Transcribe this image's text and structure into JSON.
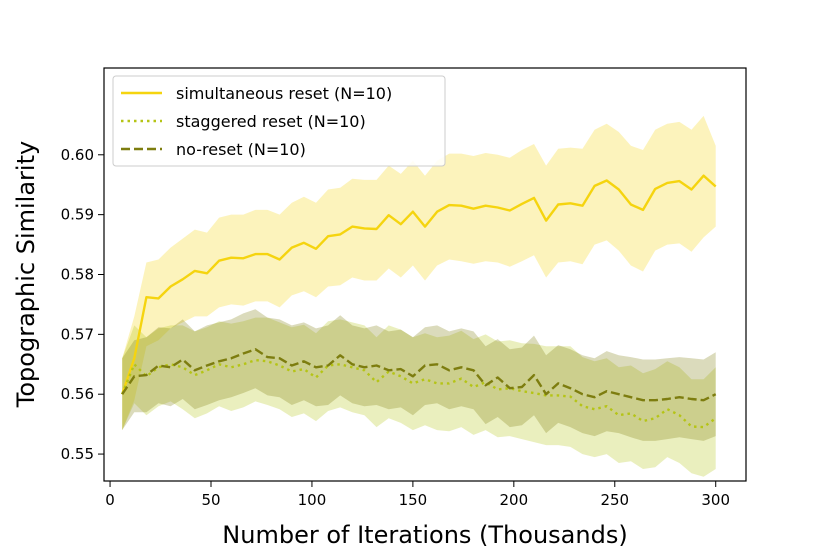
{
  "chart_data": {
    "type": "line",
    "title": "",
    "xlabel": "Number of Iterations (Thousands)",
    "ylabel": "Topographic Similarity",
    "xlim": [
      -3,
      315
    ],
    "ylim": [
      0.5455,
      0.6145
    ],
    "xticks": [
      0,
      50,
      100,
      150,
      200,
      250,
      300
    ],
    "yticks": [
      0.55,
      0.56,
      0.57,
      0.58,
      0.59,
      0.6
    ],
    "xtick_labels": [
      "0",
      "50",
      "100",
      "150",
      "200",
      "250",
      "300"
    ],
    "ytick_labels": [
      "0.55",
      "0.56",
      "0.57",
      "0.58",
      "0.59",
      "0.60"
    ],
    "grid": false,
    "legend_position": "top-left",
    "x": [
      6,
      12,
      18,
      24,
      30,
      36,
      42,
      48,
      54,
      60,
      66,
      72,
      78,
      84,
      90,
      96,
      102,
      108,
      114,
      120,
      126,
      132,
      138,
      144,
      150,
      156,
      162,
      168,
      174,
      180,
      186,
      192,
      198,
      204,
      210,
      216,
      222,
      228,
      234,
      240,
      246,
      252,
      258,
      264,
      270,
      276,
      282,
      288,
      294,
      300
    ],
    "series": [
      {
        "name": "simultaneous reset (N=10)",
        "color": "#f5d40f",
        "dash": "solid",
        "values": [
          0.56,
          0.566,
          0.5762,
          0.576,
          0.578,
          0.5792,
          0.5806,
          0.5802,
          0.5823,
          0.5828,
          0.5827,
          0.5834,
          0.5834,
          0.5825,
          0.5845,
          0.5853,
          0.5843,
          0.5864,
          0.5867,
          0.588,
          0.5877,
          0.5876,
          0.5899,
          0.5884,
          0.5905,
          0.588,
          0.5905,
          0.5916,
          0.5915,
          0.591,
          0.5915,
          0.5912,
          0.5907,
          0.5918,
          0.5928,
          0.589,
          0.5917,
          0.5919,
          0.5915,
          0.5948,
          0.5957,
          0.5942,
          0.5917,
          0.5908,
          0.5943,
          0.5953,
          0.5956,
          0.5942,
          0.5965,
          0.5947
        ],
        "lower": [
          0.554,
          0.559,
          0.568,
          0.569,
          0.571,
          0.572,
          0.573,
          0.573,
          0.5745,
          0.575,
          0.5748,
          0.5755,
          0.5755,
          0.5745,
          0.5765,
          0.5772,
          0.5762,
          0.578,
          0.5782,
          0.5795,
          0.579,
          0.579,
          0.581,
          0.5795,
          0.5815,
          0.579,
          0.5815,
          0.5825,
          0.5822,
          0.5818,
          0.5822,
          0.582,
          0.5813,
          0.5822,
          0.5832,
          0.5795,
          0.582,
          0.5822,
          0.5817,
          0.585,
          0.5857,
          0.584,
          0.5815,
          0.5805,
          0.584,
          0.585,
          0.5852,
          0.5838,
          0.5862,
          0.588
        ],
        "upper": [
          0.566,
          0.573,
          0.582,
          0.5825,
          0.5845,
          0.586,
          0.5875,
          0.587,
          0.5895,
          0.59,
          0.59,
          0.5908,
          0.5908,
          0.59,
          0.592,
          0.593,
          0.592,
          0.5942,
          0.5945,
          0.596,
          0.5958,
          0.5958,
          0.5982,
          0.5968,
          0.599,
          0.5965,
          0.599,
          0.6002,
          0.6002,
          0.5998,
          0.6003,
          0.6,
          0.5995,
          0.6008,
          0.6018,
          0.5982,
          0.601,
          0.6012,
          0.601,
          0.6042,
          0.6052,
          0.6038,
          0.6015,
          0.6008,
          0.6042,
          0.6052,
          0.6055,
          0.6042,
          0.6065,
          0.6015
        ]
      },
      {
        "name": "staggered reset (N=10)",
        "color": "#b5c416",
        "dash": "dotted",
        "values": [
          0.56,
          0.565,
          0.563,
          0.5645,
          0.565,
          0.5645,
          0.5632,
          0.564,
          0.565,
          0.5645,
          0.565,
          0.5657,
          0.5655,
          0.5648,
          0.5638,
          0.5642,
          0.5628,
          0.5648,
          0.565,
          0.5645,
          0.564,
          0.562,
          0.5638,
          0.563,
          0.5618,
          0.5625,
          0.5618,
          0.5618,
          0.5626,
          0.5612,
          0.562,
          0.5608,
          0.561,
          0.5605,
          0.5602,
          0.5598,
          0.5598,
          0.5596,
          0.558,
          0.5575,
          0.558,
          0.5565,
          0.5568,
          0.5555,
          0.556,
          0.5575,
          0.5565,
          0.5546,
          0.5545,
          0.556
        ],
        "lower": [
          0.554,
          0.5585,
          0.5565,
          0.558,
          0.5588,
          0.5575,
          0.556,
          0.5568,
          0.558,
          0.5572,
          0.5578,
          0.5588,
          0.5582,
          0.5575,
          0.5562,
          0.5568,
          0.5555,
          0.5572,
          0.5578,
          0.557,
          0.5565,
          0.5545,
          0.556,
          0.5552,
          0.554,
          0.5548,
          0.554,
          0.5538,
          0.5545,
          0.5532,
          0.554,
          0.5528,
          0.553,
          0.5525,
          0.552,
          0.5515,
          0.5515,
          0.5512,
          0.55,
          0.5495,
          0.55,
          0.5485,
          0.5488,
          0.5475,
          0.5478,
          0.5495,
          0.5485,
          0.5468,
          0.5462,
          0.5475
        ],
        "upper": [
          0.566,
          0.5715,
          0.5695,
          0.571,
          0.5715,
          0.5715,
          0.5705,
          0.5712,
          0.5722,
          0.5718,
          0.5722,
          0.5728,
          0.5728,
          0.572,
          0.5712,
          0.5716,
          0.5702,
          0.5722,
          0.5725,
          0.572,
          0.5715,
          0.5695,
          0.5715,
          0.5708,
          0.5695,
          0.5702,
          0.5695,
          0.5698,
          0.5706,
          0.5692,
          0.57,
          0.5688,
          0.569,
          0.5685,
          0.5684,
          0.568,
          0.568,
          0.568,
          0.5662,
          0.5655,
          0.566,
          0.5645,
          0.5648,
          0.5635,
          0.5642,
          0.5655,
          0.5645,
          0.5625,
          0.5625,
          0.5645
        ]
      },
      {
        "name": "no-reset (N=10)",
        "color": "#7d7d0f",
        "dash": "dashed",
        "values": [
          0.56,
          0.563,
          0.5632,
          0.5648,
          0.5645,
          0.5658,
          0.564,
          0.5648,
          0.5655,
          0.566,
          0.5668,
          0.5675,
          0.5662,
          0.566,
          0.5648,
          0.5655,
          0.5645,
          0.5648,
          0.5665,
          0.565,
          0.5645,
          0.5648,
          0.564,
          0.5642,
          0.563,
          0.5648,
          0.565,
          0.564,
          0.5645,
          0.564,
          0.5615,
          0.5628,
          0.561,
          0.5612,
          0.5632,
          0.56,
          0.5618,
          0.561,
          0.56,
          0.5595,
          0.5605,
          0.56,
          0.5595,
          0.559,
          0.559,
          0.5592,
          0.5595,
          0.5592,
          0.559,
          0.56
        ],
        "lower": [
          0.554,
          0.557,
          0.557,
          0.5585,
          0.558,
          0.5592,
          0.5575,
          0.5582,
          0.559,
          0.5595,
          0.5602,
          0.561,
          0.5598,
          0.5595,
          0.5582,
          0.559,
          0.558,
          0.5582,
          0.5598,
          0.5585,
          0.558,
          0.5582,
          0.5575,
          0.5578,
          0.5565,
          0.5582,
          0.5585,
          0.5575,
          0.558,
          0.5575,
          0.555,
          0.5562,
          0.5545,
          0.5548,
          0.5565,
          0.5535,
          0.5552,
          0.5545,
          0.5535,
          0.553,
          0.5538,
          0.5535,
          0.5528,
          0.5522,
          0.5522,
          0.5525,
          0.5528,
          0.5525,
          0.5522,
          0.553
        ],
        "upper": [
          0.566,
          0.569,
          0.5695,
          0.5712,
          0.571,
          0.5725,
          0.5705,
          0.5715,
          0.572,
          0.5725,
          0.5735,
          0.5742,
          0.5728,
          0.5725,
          0.5715,
          0.572,
          0.571,
          0.5715,
          0.5732,
          0.5715,
          0.571,
          0.5715,
          0.5705,
          0.5708,
          0.5695,
          0.5712,
          0.5715,
          0.5705,
          0.571,
          0.5705,
          0.568,
          0.5692,
          0.5675,
          0.5678,
          0.5698,
          0.5665,
          0.5682,
          0.5675,
          0.5665,
          0.566,
          0.5672,
          0.5665,
          0.5662,
          0.5658,
          0.5658,
          0.566,
          0.5662,
          0.566,
          0.5658,
          0.567
        ]
      }
    ]
  }
}
